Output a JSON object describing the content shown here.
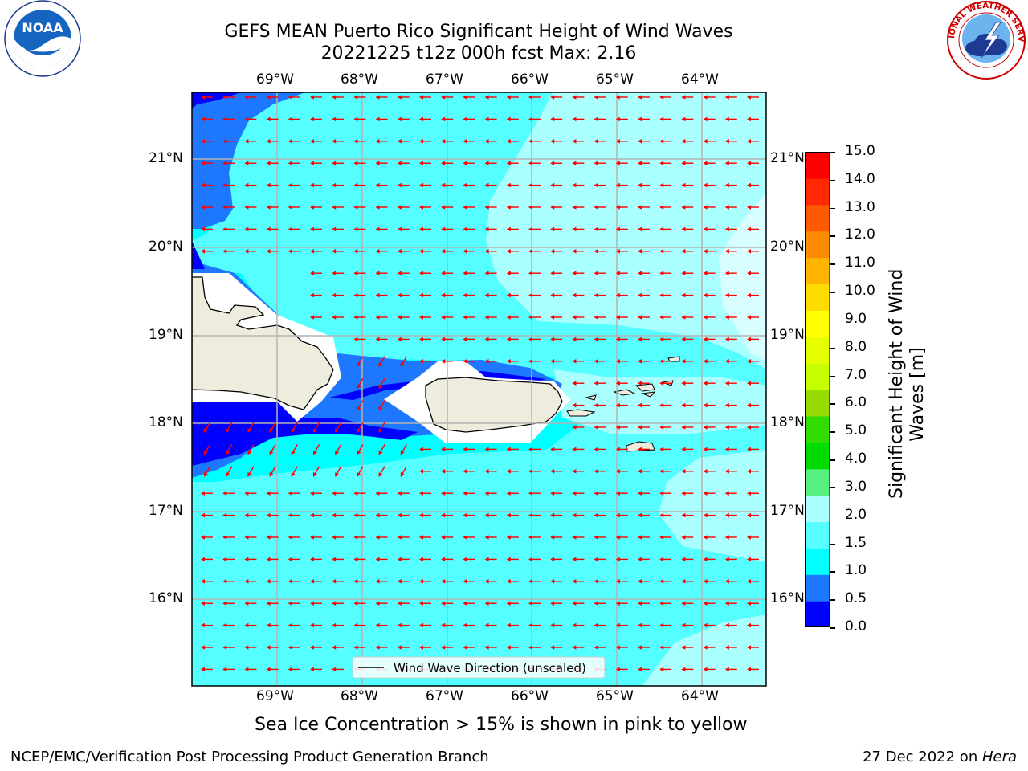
{
  "header": {
    "title_line1": "GEFS MEAN Puerto Rico Significant Height of Wind Waves",
    "title_line2": "20221225 t12z 000h fcst   Max: 2.16"
  },
  "logos": {
    "noaa_text": "NOAA",
    "noaa_ring_text": "NATIONAL OCEANIC AND ATMOSPHERIC ADMINISTRATION • U.S. DEPARTMENT OF COMMERCE",
    "nws_ring_text": "NATIONAL WEATHER SERVICE"
  },
  "map": {
    "lon_labels": [
      "69°W",
      "68°W",
      "67°W",
      "66°W",
      "65°W",
      "64°W"
    ],
    "lat_labels": [
      "21°N",
      "20°N",
      "19°N",
      "18°N",
      "17°N",
      "16°N"
    ],
    "legend_text": "Wind Wave Direction (unscaled)",
    "arrow_color": "#ff0000",
    "wave_direction": "westward"
  },
  "colorbar": {
    "title": "Significant Height of Wind Waves [m]",
    "title_line1": "Significant Height of Wind",
    "title_line2": "Waves [m]",
    "ticks": [
      "15.0",
      "14.0",
      "13.0",
      "12.0",
      "11.0",
      "10.0",
      "9.0",
      "8.0",
      "7.0",
      "6.0",
      "5.0",
      "4.0",
      "3.0",
      "2.0",
      "1.5",
      "1.0",
      "0.5",
      "0.0"
    ],
    "colors_bottom_to_top": [
      "#0000ff",
      "#1e78ff",
      "#00ffff",
      "#55ffff",
      "#aaffff",
      "#55f07d",
      "#00dc00",
      "#32dc00",
      "#96dc00",
      "#c8ff00",
      "#e6ff00",
      "#ffff00",
      "#ffdc00",
      "#ffb400",
      "#ff8c00",
      "#ff5a00",
      "#ff2800",
      "#ff0000"
    ]
  },
  "caption": "Sea Ice Concentration > 15% is shown in pink to yellow",
  "footer": {
    "left": "NCEP/EMC/Verification Post Processing Product Generation Branch",
    "right_date": "27 Dec 2022 on ",
    "right_host": "Hera"
  }
}
